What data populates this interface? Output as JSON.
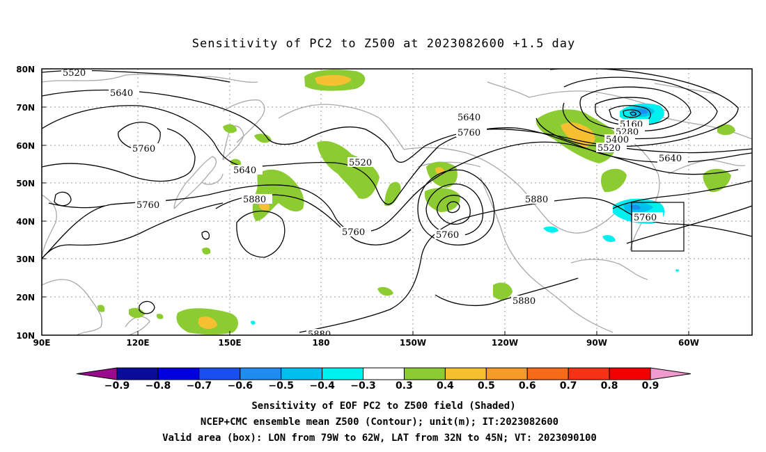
{
  "title": "Sensitivity of PC2 to Z500 at 2023082600 +1.5 day",
  "lon_ticks": [
    "90E",
    "120E",
    "150E",
    "180",
    "150W",
    "120W",
    "90W",
    "60W"
  ],
  "lat_ticks": [
    "80N",
    "70N",
    "60N",
    "50N",
    "40N",
    "30N",
    "20N",
    "10N"
  ],
  "contour_labels": {
    "c5520a": "5520",
    "c5640a": "5640",
    "c5760a": "5760",
    "c5640b": "5640",
    "c5760b": "5760",
    "c5880a": "5880",
    "c5520b": "5520",
    "c5760c": "5760",
    "c5640c": "5640",
    "c5760d": "5760",
    "c5760e": "5760",
    "c5880b": "5880",
    "c5880c": "5880",
    "c5880d": "5880",
    "c5160": "5160",
    "c5280": "5280",
    "c5400": "5400",
    "c5520c": "5520",
    "c5640d": "5640",
    "c5760f": "5760"
  },
  "colorbar": {
    "colors": [
      "#9a0a8c",
      "#0b0b9a",
      "#0000dc",
      "#1850f0",
      "#1e8cf0",
      "#00c0f0",
      "#00f0f0",
      "#ffffff",
      "#8ccc32",
      "#f6c030",
      "#f69a28",
      "#f66a1a",
      "#f63214",
      "#f00000",
      "#f09ad0"
    ],
    "labels": [
      "-0.9",
      "-0.8",
      "-0.7",
      "-0.6",
      "-0.5",
      "-0.4",
      "-0.3",
      "0.3",
      "0.4",
      "0.5",
      "0.6",
      "0.7",
      "0.8",
      "0.9"
    ]
  },
  "captions": {
    "line1": "Sensitivity of EOF PC2 to Z500 field (Shaded)",
    "line2": "NCEP+CMC ensemble mean Z500 (Contour); unit(m); IT:2023082600",
    "line3": "Valid area (box): LON from 79W to 62W, LAT from 32N to 45N; VT: 2023090100"
  },
  "map": {
    "projection": "cylindrical equidistant",
    "lon_range": [
      "90E",
      "40W"
    ],
    "lat_range": [
      "10N",
      "80N"
    ],
    "gridlines": "dotted",
    "valid_box": {
      "lon": [
        "79W",
        "62W"
      ],
      "lat": [
        "32N",
        "45N"
      ]
    }
  }
}
